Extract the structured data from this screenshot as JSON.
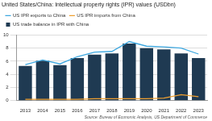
{
  "chart_data": {
    "type": "bar",
    "title": "United States/China: Intellectual property rights (IPR) values (USDbn)",
    "source": "Source: Bureau of Economic Analysis, US Department of Commerce",
    "categories": [
      "2013",
      "2014",
      "2015",
      "2016",
      "2017",
      "2018",
      "2019",
      "2020",
      "2021",
      "2022",
      "2023"
    ],
    "series": [
      {
        "name": "US IPR exports to China",
        "type": "line",
        "color": "#3ea8e0",
        "values": [
          5.5,
          6.2,
          5.6,
          6.7,
          7.4,
          7.5,
          9.0,
          8.3,
          8.2,
          8.0,
          7.1
        ]
      },
      {
        "name": "US IPR imports from China",
        "type": "line",
        "color": "#f0a030",
        "values": [
          0.2,
          0.2,
          0.2,
          0.2,
          0.3,
          0.3,
          0.3,
          0.3,
          0.4,
          0.9,
          0.6
        ]
      },
      {
        "name": "US trade balance in IPR with China",
        "type": "bar",
        "color": "#1f3a52",
        "values": [
          5.3,
          6.1,
          5.4,
          6.5,
          7.0,
          7.2,
          8.7,
          8.0,
          7.8,
          7.2,
          6.5
        ]
      }
    ],
    "ylim": [
      0,
      10
    ],
    "yticks": [
      0,
      2,
      4,
      6,
      8,
      10
    ],
    "grid": true,
    "legend": "top-left"
  }
}
